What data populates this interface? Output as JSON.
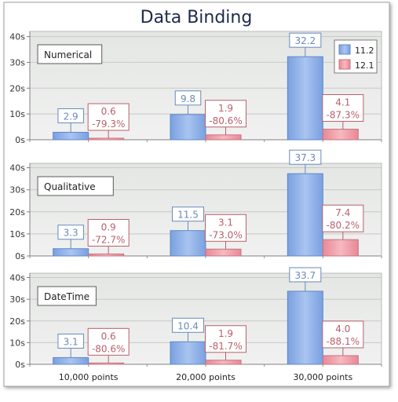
{
  "chart_data": {
    "type": "bar",
    "title": "Data Binding",
    "categories": [
      "10,000 points",
      "20,000 points",
      "30,000 points"
    ],
    "legend": {
      "placement": "top-right",
      "entries": [
        "11.2",
        "12.1"
      ]
    },
    "y_ticks": [
      "0s",
      "10s",
      "20s",
      "30s",
      "40s"
    ],
    "ylim": [
      0,
      42
    ],
    "grid": true,
    "colors": {
      "s1": "#8fb0e8",
      "s1_stroke": "#5f88c9",
      "s2": "#ee9fa8",
      "s2_stroke": "#c9737e",
      "s1_label": "#6a8ab8",
      "s2_label": "#b8606a"
    },
    "panels": [
      {
        "label": "Numerical",
        "series": [
          {
            "name": "11.2",
            "values": [
              2.9,
              9.8,
              32.2
            ],
            "labels": [
              "2.9",
              "9.8",
              "32.2"
            ]
          },
          {
            "name": "12.1",
            "values": [
              0.6,
              1.9,
              4.1
            ],
            "labels": [
              "0.6\n-79.3%",
              "1.9\n-80.6%",
              "4.1\n-87.3%"
            ]
          }
        ]
      },
      {
        "label": "Qualitative",
        "series": [
          {
            "name": "11.2",
            "values": [
              3.3,
              11.5,
              37.3
            ],
            "labels": [
              "3.3",
              "11.5",
              "37.3"
            ]
          },
          {
            "name": "12.1",
            "values": [
              0.9,
              3.1,
              7.4
            ],
            "labels": [
              "0.9\n-72.7%",
              "3.1\n-73.0%",
              "7.4\n-80.2%"
            ]
          }
        ]
      },
      {
        "label": "DateTime",
        "series": [
          {
            "name": "11.2",
            "values": [
              3.1,
              10.4,
              33.7
            ],
            "labels": [
              "3.1",
              "10.4",
              "33.7"
            ]
          },
          {
            "name": "12.1",
            "values": [
              0.6,
              1.9,
              4.0
            ],
            "labels": [
              "0.6\n-80.6%",
              "1.9\n-81.7%",
              "4.0\n-88.1%"
            ]
          }
        ]
      }
    ]
  }
}
